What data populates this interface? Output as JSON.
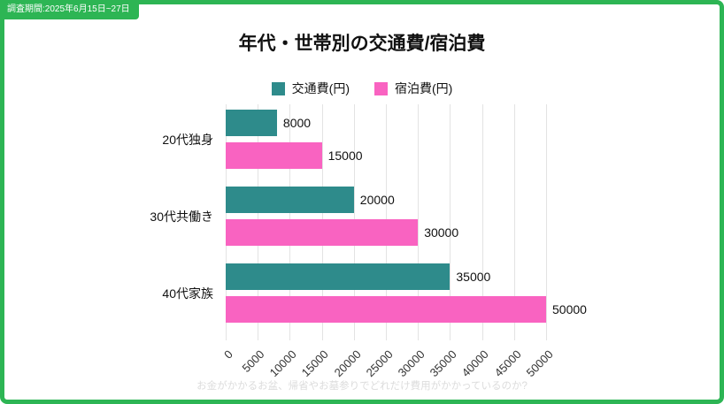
{
  "page": {
    "badge": "調査期間:2025年6月15日~27日",
    "footer": "お金がかかるお盆、帰省やお墓参りでどれだけ費用がかかっているのか?"
  },
  "colors": {
    "frame_green": "#2DB554",
    "teal": "#2E8B8B",
    "pink": "#F963C1",
    "grid": "#E3E3E3"
  },
  "chart_data": {
    "type": "bar",
    "orientation": "horizontal",
    "title": "年代・世帯別の交通費/宿泊費",
    "categories": [
      "20代独身",
      "30代共働き",
      "40代家族"
    ],
    "series": [
      {
        "name": "交通費(円)",
        "color": "#2E8B8B",
        "values": [
          8000,
          20000,
          35000
        ]
      },
      {
        "name": "宿泊費(円)",
        "color": "#F963C1",
        "values": [
          15000,
          30000,
          50000
        ]
      }
    ],
    "xlim": [
      0,
      50000
    ],
    "xticks": [
      0,
      5000,
      10000,
      15000,
      20000,
      25000,
      30000,
      35000,
      40000,
      45000,
      50000
    ],
    "grid": true,
    "legend_position": "top",
    "value_labels": true
  }
}
